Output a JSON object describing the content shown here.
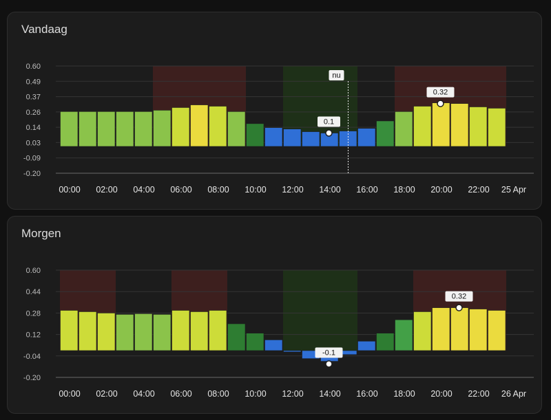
{
  "chart_data": [
    {
      "type": "bar",
      "title": "Vandaag",
      "date_label": "25 Apr",
      "y_ticks": [
        "0.60",
        "0.49",
        "0.37",
        "0.26",
        "0.14",
        "0.03",
        "-0.09",
        "-0.20"
      ],
      "x_ticks": [
        "00:00",
        "02:00",
        "04:00",
        "06:00",
        "08:00",
        "10:00",
        "12:00",
        "14:00",
        "16:00",
        "18:00",
        "20:00",
        "22:00"
      ],
      "ylim": [
        -0.2,
        0.6
      ],
      "hours": [
        0,
        1,
        2,
        3,
        4,
        5,
        6,
        7,
        8,
        9,
        10,
        11,
        12,
        13,
        14,
        15,
        16,
        17,
        18,
        19,
        20,
        21,
        22,
        23
      ],
      "values": [
        0.26,
        0.26,
        0.26,
        0.26,
        0.26,
        0.27,
        0.29,
        0.31,
        0.3,
        0.26,
        0.17,
        0.14,
        0.13,
        0.11,
        0.1,
        0.115,
        0.135,
        0.19,
        0.26,
        0.3,
        0.325,
        0.32,
        0.295,
        0.285
      ],
      "colors": [
        "#8bc34a",
        "#8bc34a",
        "#8bc34a",
        "#8bc34a",
        "#8bc34a",
        "#8bc34a",
        "#cddc39",
        "#ebdb3e",
        "#cddc39",
        "#8bc34a",
        "#2e7d32",
        "#2f6fd6",
        "#2f6fd6",
        "#2f6fd6",
        "#2f6fd6",
        "#2f6fd6",
        "#2f6fd6",
        "#388e3c",
        "#8bc34a",
        "#cddc39",
        "#ebdb3e",
        "#ebdb3e",
        "#cddc39",
        "#cddc39"
      ],
      "expensive_ranges": [
        [
          5,
          9
        ],
        [
          18,
          23
        ]
      ],
      "cheap_ranges": [
        [
          12,
          15
        ]
      ],
      "now_hour": 15.5,
      "now_label": "nu",
      "min_marker": {
        "hour": 14,
        "value": 0.1,
        "label": "0.1"
      },
      "max_marker": {
        "hour": 20,
        "value": 0.32,
        "label": "0.32"
      }
    },
    {
      "type": "bar",
      "title": "Morgen",
      "date_label": "26 Apr",
      "y_ticks": [
        "0.60",
        "0.44",
        "0.28",
        "0.12",
        "-0.04",
        "-0.20"
      ],
      "x_ticks": [
        "00:00",
        "02:00",
        "04:00",
        "06:00",
        "08:00",
        "10:00",
        "12:00",
        "14:00",
        "16:00",
        "18:00",
        "20:00",
        "22:00"
      ],
      "ylim": [
        -0.2,
        0.6
      ],
      "hours": [
        0,
        1,
        2,
        3,
        4,
        5,
        6,
        7,
        8,
        9,
        10,
        11,
        12,
        13,
        14,
        15,
        16,
        17,
        18,
        19,
        20,
        21,
        22,
        23
      ],
      "values": [
        0.3,
        0.29,
        0.28,
        0.27,
        0.275,
        0.27,
        0.3,
        0.29,
        0.3,
        0.2,
        0.13,
        0.08,
        -0.01,
        -0.06,
        -0.08,
        -0.03,
        0.07,
        0.13,
        0.23,
        0.29,
        0.32,
        0.32,
        0.31,
        0.3
      ],
      "colors": [
        "#cddc39",
        "#cddc39",
        "#cddc39",
        "#8bc34a",
        "#8bc34a",
        "#8bc34a",
        "#cddc39",
        "#cddc39",
        "#cddc39",
        "#2e7d32",
        "#2e7d32",
        "#2f6fd6",
        "#2f6fd6",
        "#2f6fd6",
        "#2f6fd6",
        "#2f6fd6",
        "#2f6fd6",
        "#2e7d32",
        "#43a047",
        "#cddc39",
        "#ebdb3e",
        "#ebdb3e",
        "#ebdb3e",
        "#ebdb3e"
      ],
      "expensive_ranges": [
        [
          0,
          2
        ],
        [
          6,
          8
        ],
        [
          19,
          23
        ]
      ],
      "cheap_ranges": [
        [
          12,
          15
        ]
      ],
      "min_marker": {
        "hour": 14,
        "value": -0.1,
        "label": "-0.1"
      },
      "max_marker": {
        "hour": 21,
        "value": 0.32,
        "label": "0.32"
      }
    }
  ],
  "colors": {
    "expensive_band": "#3d1f1e",
    "cheap_band": "#1e3018",
    "grid": "#353535",
    "card_bg": "#1c1c1c"
  }
}
